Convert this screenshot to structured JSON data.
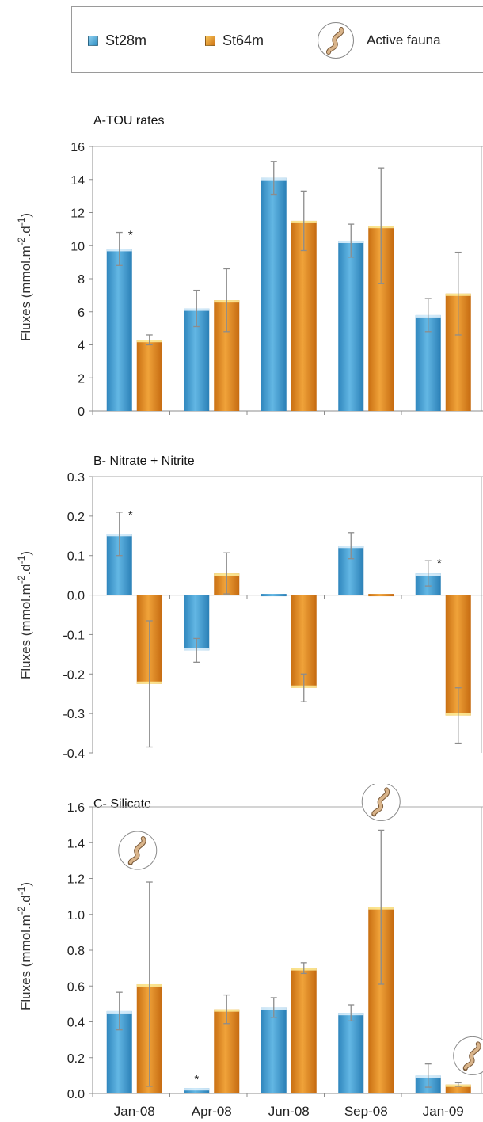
{
  "legend": {
    "items": [
      {
        "label": "St28m",
        "color": "#3b9ed0"
      },
      {
        "label": "St64m",
        "color": "#e08a1e"
      },
      {
        "label": "Active fauna",
        "icon": "worm-icon"
      }
    ]
  },
  "colors": {
    "st28": "#3b9ed0",
    "st64": "#e08a1e",
    "axis": "#8c8c8c",
    "frame": "#a8a8a8"
  },
  "chart_data": [
    {
      "type": "bar",
      "title": "A-TOU rates",
      "ylabel": "Fluxes (mmol.m-2.d-1)",
      "categories": [
        "Jan-08",
        "Apr-08",
        "Jun-08",
        "Sep-08",
        "Jan-09"
      ],
      "ylim": [
        0,
        16
      ],
      "yticks": [
        "0",
        "2",
        "4",
        "6",
        "8",
        "10",
        "12",
        "14",
        "16"
      ],
      "series": [
        {
          "name": "St28m",
          "values": [
            9.8,
            6.2,
            14.1,
            10.3,
            5.8
          ],
          "errors": [
            1.0,
            1.1,
            1.0,
            1.0,
            1.0
          ]
        },
        {
          "name": "St64m",
          "values": [
            4.3,
            6.7,
            11.5,
            11.2,
            7.1
          ],
          "errors": [
            0.3,
            1.9,
            1.8,
            3.5,
            2.5
          ]
        }
      ],
      "annotations": [
        {
          "text": "*",
          "series": 0,
          "category": 0
        }
      ],
      "fauna": [],
      "grid": false,
      "show_xticks": false
    },
    {
      "type": "bar",
      "title": "B- Nitrate + Nitrite",
      "ylabel": "Fluxes (mmol.m-2.d-1)",
      "categories": [
        "Jan-08",
        "Apr-08",
        "Jun-08",
        "Sep-08",
        "Jan-09"
      ],
      "ylim": [
        -0.4,
        0.3
      ],
      "yticks": [
        "-0.4",
        "-0.3",
        "-0.2",
        "-0.1",
        "0.0",
        "0.1",
        "0.2",
        "0.3"
      ],
      "series": [
        {
          "name": "St28m",
          "values": [
            0.155,
            -0.14,
            0.0,
            0.125,
            0.055
          ],
          "errors": [
            0.055,
            0.03,
            0.0,
            0.033,
            0.032
          ]
        },
        {
          "name": "St64m",
          "values": [
            -0.225,
            0.055,
            -0.235,
            0.0,
            -0.305
          ],
          "errors": [
            0.16,
            0.052,
            0.035,
            0.0,
            0.07
          ]
        }
      ],
      "annotations": [
        {
          "text": "*",
          "series": 0,
          "category": 0
        },
        {
          "text": "*",
          "series": 0,
          "category": 4
        }
      ],
      "fauna": [],
      "grid": false,
      "show_xticks": false
    },
    {
      "type": "bar",
      "title": "C- Silicate",
      "ylabel": "Fluxes (mmol.m-2.d-1)",
      "categories": [
        "Jan-08",
        "Apr-08",
        "Jun-08",
        "Sep-08",
        "Jan-09"
      ],
      "ylim": [
        0,
        1.6
      ],
      "yticks": [
        "0.0",
        "0.2",
        "0.4",
        "0.6",
        "0.8",
        "1.0",
        "1.2",
        "1.4",
        "1.6"
      ],
      "series": [
        {
          "name": "St28m",
          "values": [
            0.46,
            0.03,
            0.48,
            0.45,
            0.1
          ],
          "errors": [
            0.105,
            0.0,
            0.055,
            0.045,
            0.065
          ]
        },
        {
          "name": "St64m",
          "values": [
            0.61,
            0.47,
            0.7,
            1.04,
            0.05
          ],
          "errors": [
            0.57,
            0.08,
            0.03,
            0.43,
            0.01
          ]
        }
      ],
      "annotations": [
        {
          "text": "*",
          "series": 0,
          "category": 1
        }
      ],
      "fauna": [
        {
          "series": 1,
          "category": 0
        },
        {
          "series": 1,
          "category": 3
        },
        {
          "series": 1,
          "category": 4
        }
      ],
      "grid": false,
      "show_xticks": true
    }
  ]
}
